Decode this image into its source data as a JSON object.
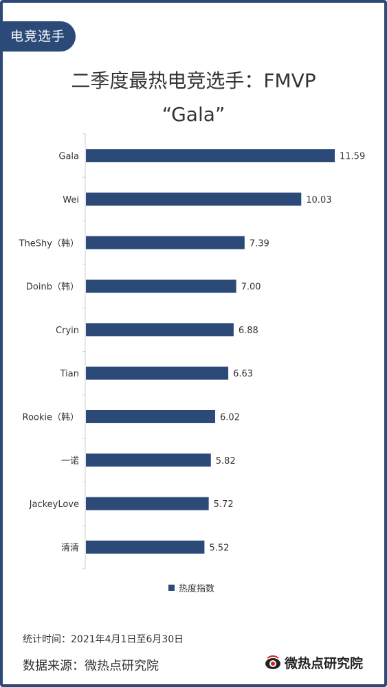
{
  "tag": "电竞选手",
  "title_line1": "二季度最热电竞选手：FMVP",
  "title_line2": "“Gala”",
  "chart_data": {
    "type": "bar",
    "orientation": "horizontal",
    "categories": [
      "Gala",
      "Wei",
      "TheShy（韩）",
      "Doinb（韩）",
      "Cryin",
      "Tian",
      "Rookie（韩）",
      "一诺",
      "JackeyLove",
      "清清"
    ],
    "series": [
      {
        "name": "热度指数",
        "values": [
          11.59,
          10.03,
          7.39,
          7.0,
          6.88,
          6.63,
          6.02,
          5.82,
          5.72,
          5.52
        ]
      }
    ],
    "value_labels": [
      "11.59",
      "10.03",
      "7.39",
      "7.00",
      "6.88",
      "6.63",
      "6.02",
      "5.82",
      "5.72",
      "5.52"
    ],
    "xlim": [
      0,
      11.59
    ],
    "grid": false,
    "legend_position": "bottom",
    "bar_color": "#2b4a78"
  },
  "legend_label": "热度指数",
  "period": "统计时间：2021年4月1日至6月30日",
  "source": "数据来源：微热点研究院",
  "logo_text": "微热点研究院",
  "logo_icon": "eye-logo-icon"
}
